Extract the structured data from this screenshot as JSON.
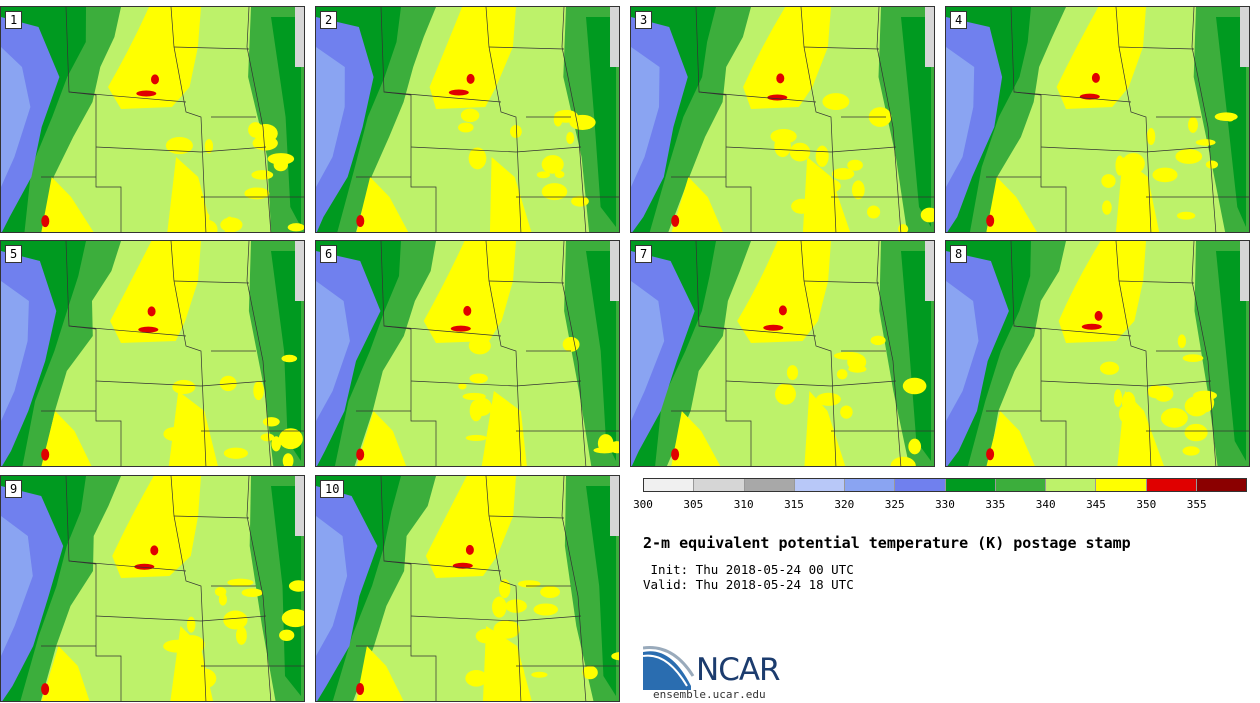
{
  "panels": [
    {
      "label": "1"
    },
    {
      "label": "2"
    },
    {
      "label": "3"
    },
    {
      "label": "4"
    },
    {
      "label": "5"
    },
    {
      "label": "6"
    },
    {
      "label": "7"
    },
    {
      "label": "8"
    },
    {
      "label": "9"
    },
    {
      "label": "10"
    }
  ],
  "colorbar": {
    "colors": [
      "#f0f0f0",
      "#d6d6d6",
      "#a8a8a8",
      "#b8c8f8",
      "#8aa4f2",
      "#7080ee",
      "#009a20",
      "#3cae3c",
      "#bdf26a",
      "#ffff00",
      "#e00000",
      "#8b0000"
    ],
    "ticks": [
      "300",
      "305",
      "310",
      "315",
      "320",
      "325",
      "330",
      "335",
      "340",
      "345",
      "350",
      "355"
    ]
  },
  "title": "2-m equivalent potential temperature (K) postage stamp",
  "init": " Init: Thu 2018-05-24 00 UTC",
  "valid": "Valid: Thu 2018-05-24 18 UTC",
  "logo": {
    "name": "NCAR",
    "url": "ensemble.ucar.edu"
  }
}
